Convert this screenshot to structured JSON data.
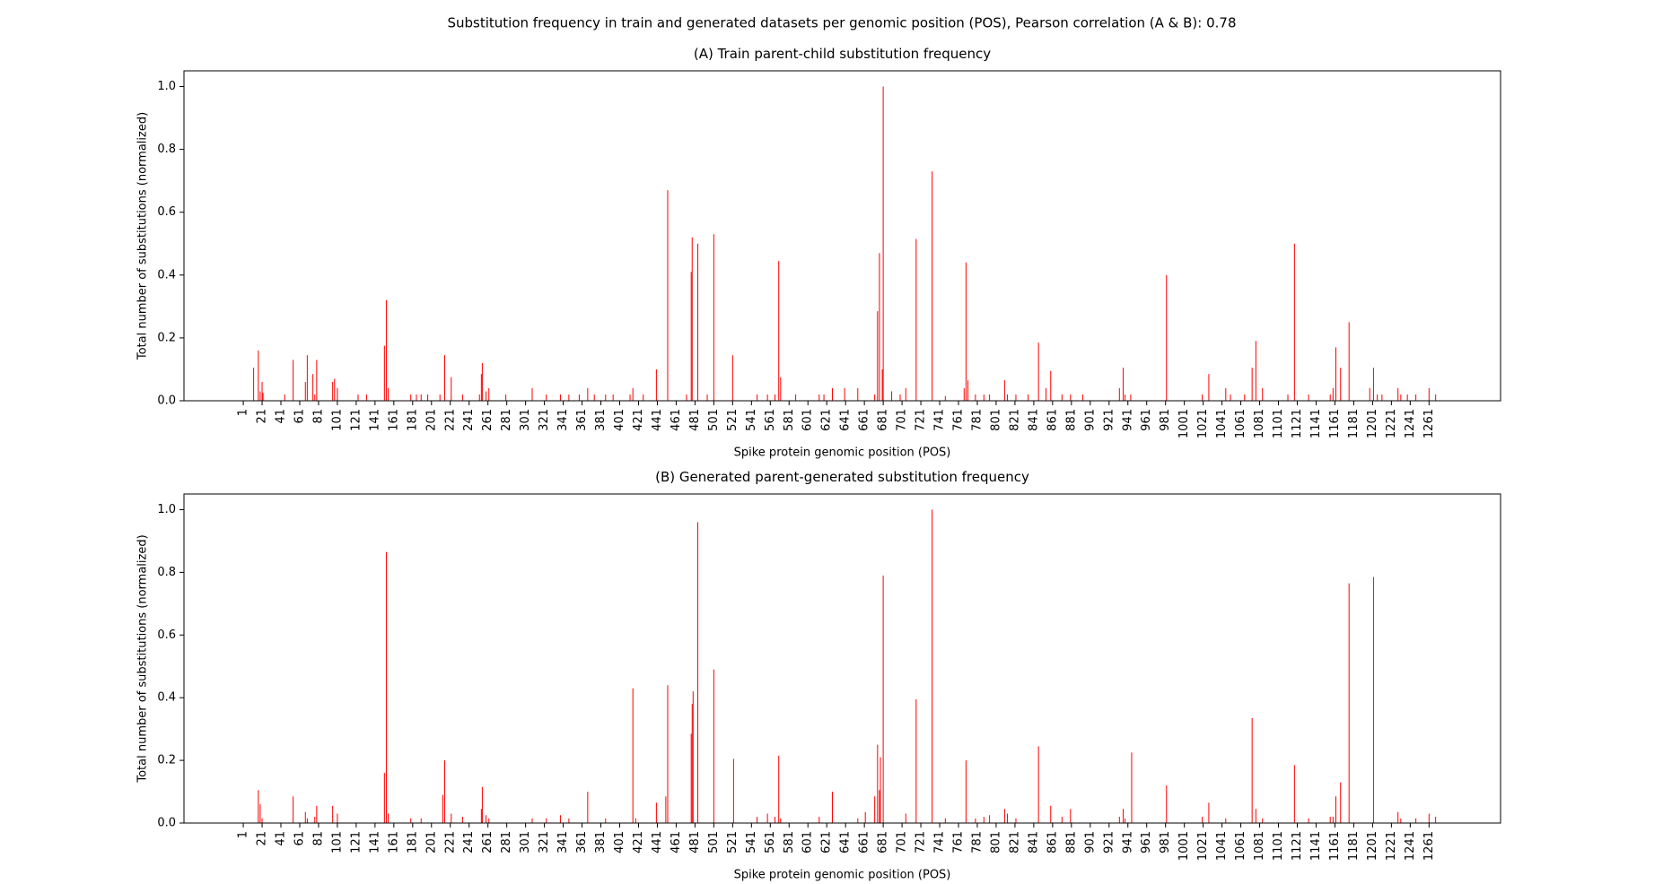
{
  "title": "Substitution frequency in train and generated datasets per genomic position (POS), Pearson correlation (A & B): 0.78",
  "chart_data": [
    {
      "type": "bar",
      "title": "(A) Train parent-child substitution frequency",
      "x_label": "Spike protein genomic position (POS)",
      "y_label": "Total number of substitutions (normalized)",
      "color": "#ff0000",
      "x": [
        12,
        17,
        19,
        21,
        22,
        45,
        54,
        67,
        69,
        75,
        77,
        79,
        96,
        98,
        101,
        123,
        132,
        151,
        153,
        155,
        179,
        185,
        190,
        197,
        210,
        215,
        222,
        234,
        252,
        254,
        255,
        259,
        262,
        280,
        308,
        323,
        338,
        347,
        358,
        367,
        374,
        386,
        394,
        412,
        415,
        426,
        440,
        452,
        472,
        477,
        478,
        484,
        494,
        501,
        521,
        547,
        558,
        566,
        570,
        572,
        588,
        613,
        618,
        627,
        640,
        654,
        672,
        675,
        677,
        680,
        681,
        690,
        699,
        705,
        716,
        733,
        747,
        767,
        769,
        771,
        779,
        788,
        794,
        810,
        813,
        822,
        835,
        846,
        854,
        859,
        871,
        880,
        893,
        932,
        936,
        938,
        944,
        982,
        1020,
        1027,
        1045,
        1050,
        1065,
        1073,
        1077,
        1084,
        1111,
        1118,
        1133,
        1156,
        1159,
        1162,
        1167,
        1176,
        1198,
        1202,
        1206,
        1211,
        1228,
        1231,
        1238,
        1247,
        1261,
        1268
      ],
      "values": [
        0.105,
        0.16,
        0.03,
        0.06,
        0.025,
        0.02,
        0.13,
        0.06,
        0.145,
        0.085,
        0.02,
        0.13,
        0.06,
        0.07,
        0.04,
        0.02,
        0.02,
        0.175,
        0.32,
        0.04,
        0.02,
        0.02,
        0.02,
        0.02,
        0.02,
        0.145,
        0.075,
        0.02,
        0.02,
        0.085,
        0.12,
        0.03,
        0.04,
        0.02,
        0.04,
        0.02,
        0.02,
        0.02,
        0.02,
        0.04,
        0.02,
        0.02,
        0.02,
        0.02,
        0.04,
        0.02,
        0.1,
        0.67,
        0.02,
        0.41,
        0.52,
        0.5,
        0.02,
        0.53,
        0.145,
        0.02,
        0.02,
        0.02,
        0.445,
        0.075,
        0.02,
        0.02,
        0.02,
        0.04,
        0.04,
        0.04,
        0.02,
        0.285,
        0.47,
        0.1,
        1.0,
        0.03,
        0.02,
        0.04,
        0.515,
        0.73,
        0.015,
        0.04,
        0.44,
        0.065,
        0.02,
        0.02,
        0.02,
        0.065,
        0.02,
        0.02,
        0.02,
        0.185,
        0.04,
        0.095,
        0.02,
        0.02,
        0.02,
        0.04,
        0.105,
        0.02,
        0.02,
        0.4,
        0.02,
        0.085,
        0.04,
        0.02,
        0.02,
        0.105,
        0.19,
        0.04,
        0.02,
        0.5,
        0.02,
        0.02,
        0.04,
        0.17,
        0.105,
        0.25,
        0.04,
        0.105,
        0.02,
        0.02,
        0.04,
        0.02,
        0.02,
        0.02,
        0.04,
        0.02
      ],
      "xlim": [
        -62,
        1337
      ],
      "ylim": [
        0,
        1.05
      ],
      "xticks": [
        1,
        21,
        41,
        61,
        81,
        101,
        121,
        141,
        161,
        181,
        201,
        221,
        241,
        261,
        281,
        301,
        321,
        341,
        361,
        381,
        401,
        421,
        441,
        461,
        481,
        501,
        521,
        541,
        561,
        581,
        601,
        621,
        641,
        661,
        681,
        701,
        721,
        741,
        761,
        781,
        801,
        821,
        841,
        861,
        881,
        901,
        921,
        941,
        961,
        981,
        1001,
        1021,
        1041,
        1061,
        1081,
        1101,
        1121,
        1141,
        1161,
        1181,
        1201,
        1221,
        1241,
        1261
      ],
      "yticks": [
        {
          "value": 0,
          "label": "0.0"
        },
        {
          "value": 0.2,
          "label": "0.2"
        },
        {
          "value": 0.4,
          "label": "0.4"
        },
        {
          "value": 0.6,
          "label": "0.6"
        },
        {
          "value": 0.8,
          "label": "0.8"
        },
        {
          "value": 1,
          "label": "1.0"
        }
      ]
    },
    {
      "type": "bar",
      "title": "(B) Generated parent-generated substitution frequency",
      "x_label": "Spike protein genomic position (POS)",
      "y_label": "Total number of substitutions (normalized)",
      "color": "#ff0000",
      "x": [
        17,
        19,
        21,
        54,
        67,
        69,
        77,
        79,
        96,
        101,
        151,
        153,
        155,
        179,
        190,
        213,
        215,
        222,
        234,
        254,
        255,
        259,
        262,
        308,
        323,
        338,
        347,
        367,
        386,
        415,
        418,
        440,
        450,
        452,
        477,
        478,
        479,
        484,
        501,
        522,
        547,
        558,
        566,
        570,
        572,
        613,
        627,
        654,
        662,
        672,
        675,
        677,
        678,
        681,
        705,
        716,
        733,
        747,
        769,
        779,
        788,
        794,
        810,
        813,
        822,
        846,
        859,
        871,
        880,
        932,
        936,
        938,
        945,
        982,
        1020,
        1027,
        1045,
        1073,
        1077,
        1084,
        1118,
        1133,
        1156,
        1159,
        1162,
        1167,
        1176,
        1202,
        1228,
        1231,
        1247,
        1261,
        1268
      ],
      "values": [
        0.105,
        0.06,
        0.015,
        0.085,
        0.035,
        0.015,
        0.02,
        0.055,
        0.055,
        0.03,
        0.16,
        0.865,
        0.03,
        0.015,
        0.015,
        0.09,
        0.2,
        0.03,
        0.02,
        0.045,
        0.115,
        0.025,
        0.015,
        0.015,
        0.015,
        0.025,
        0.015,
        0.1,
        0.015,
        0.43,
        0.015,
        0.065,
        0.085,
        0.44,
        0.285,
        0.38,
        0.42,
        0.96,
        0.49,
        0.205,
        0.02,
        0.03,
        0.02,
        0.215,
        0.015,
        0.02,
        0.1,
        0.015,
        0.035,
        0.085,
        0.25,
        0.105,
        0.21,
        0.79,
        0.03,
        0.395,
        1.0,
        0.015,
        0.2,
        0.015,
        0.02,
        0.025,
        0.045,
        0.03,
        0.015,
        0.245,
        0.055,
        0.02,
        0.045,
        0.02,
        0.045,
        0.015,
        0.225,
        0.12,
        0.02,
        0.065,
        0.015,
        0.335,
        0.045,
        0.015,
        0.185,
        0.015,
        0.02,
        0.02,
        0.085,
        0.13,
        0.765,
        0.785,
        0.035,
        0.015,
        0.015,
        0.03,
        0.02
      ],
      "xlim": [
        -62,
        1337
      ],
      "ylim": [
        0,
        1.05
      ],
      "xticks": [
        1,
        21,
        41,
        61,
        81,
        101,
        121,
        141,
        161,
        181,
        201,
        221,
        241,
        261,
        281,
        301,
        321,
        341,
        361,
        381,
        401,
        421,
        441,
        461,
        481,
        501,
        521,
        541,
        561,
        581,
        601,
        621,
        641,
        661,
        681,
        701,
        721,
        741,
        761,
        781,
        801,
        821,
        841,
        861,
        881,
        901,
        921,
        941,
        961,
        981,
        1001,
        1021,
        1041,
        1061,
        1081,
        1101,
        1121,
        1141,
        1161,
        1181,
        1201,
        1221,
        1241,
        1261
      ],
      "yticks": [
        {
          "value": 0,
          "label": "0.0"
        },
        {
          "value": 0.2,
          "label": "0.2"
        },
        {
          "value": 0.4,
          "label": "0.4"
        },
        {
          "value": 0.6,
          "label": "0.6"
        },
        {
          "value": 0.8,
          "label": "0.8"
        },
        {
          "value": 1,
          "label": "1.0"
        }
      ]
    }
  ]
}
